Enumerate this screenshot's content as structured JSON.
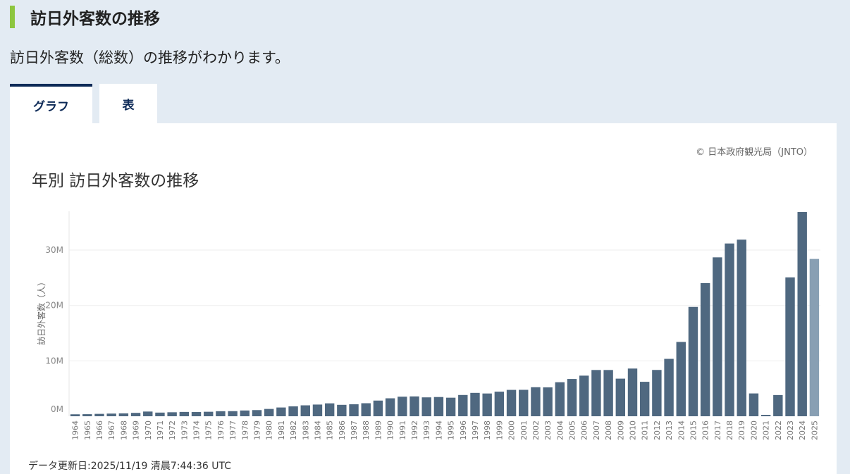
{
  "header": {
    "title": "訪日外客数の推移"
  },
  "subtitle": "訪日外客数（総数）の推移がわかります。",
  "tabs": [
    {
      "label": "グラフ"
    },
    {
      "label": "表"
    }
  ],
  "copyright": "© 日本政府観光局（JNTO）",
  "footer": {
    "updated": "データ更新日:2025/11/19 清晨7:44:36 UTC"
  },
  "colors": {
    "bar": "#4f6880",
    "bar_partial": "#889fb3",
    "accent": "#8dc63f",
    "tab": "#0d2a57"
  },
  "chart_data": {
    "type": "bar",
    "title": "年別 訪日外客数の推移",
    "ylabel": "訪日外客数（人）",
    "xlabel": "",
    "ylim": [
      0,
      37000000
    ],
    "yticks": [
      {
        "value": 0,
        "label": "0M"
      },
      {
        "value": 10000000,
        "label": "10M"
      },
      {
        "value": 20000000,
        "label": "20M"
      },
      {
        "value": 30000000,
        "label": "30M"
      }
    ],
    "grid": true,
    "categories": [
      "1964",
      "1965",
      "1966",
      "1967",
      "1968",
      "1969",
      "1970",
      "1971",
      "1972",
      "1973",
      "1974",
      "1975",
      "1976",
      "1977",
      "1978",
      "1979",
      "1980",
      "1981",
      "1982",
      "1983",
      "1984",
      "1985",
      "1986",
      "1987",
      "1988",
      "1989",
      "1990",
      "1991",
      "1992",
      "1993",
      "1994",
      "1995",
      "1996",
      "1997",
      "1998",
      "1999",
      "2000",
      "2001",
      "2002",
      "2003",
      "2004",
      "2005",
      "2006",
      "2007",
      "2008",
      "2009",
      "2010",
      "2011",
      "2012",
      "2013",
      "2014",
      "2015",
      "2016",
      "2017",
      "2018",
      "2019",
      "2020",
      "2021",
      "2022",
      "2023",
      "2024",
      "2025"
    ],
    "values": [
      350000,
      370000,
      430000,
      480000,
      520000,
      610000,
      850000,
      660000,
      720000,
      780000,
      760000,
      810000,
      910000,
      920000,
      1040000,
      1110000,
      1320000,
      1580000,
      1790000,
      1970000,
      2110000,
      2330000,
      2060000,
      2160000,
      2350000,
      2830000,
      3240000,
      3530000,
      3580000,
      3410000,
      3470000,
      3350000,
      3840000,
      4220000,
      4110000,
      4440000,
      4760000,
      4770000,
      5240000,
      5210000,
      6140000,
      6730000,
      7330000,
      8350000,
      8350000,
      6790000,
      8610000,
      6220000,
      8360000,
      10360000,
      13410000,
      19740000,
      24040000,
      28690000,
      31190000,
      31880000,
      4120000,
      250000,
      3830000,
      25070000,
      36870000,
      28400000
    ],
    "partial": [
      61
    ]
  }
}
